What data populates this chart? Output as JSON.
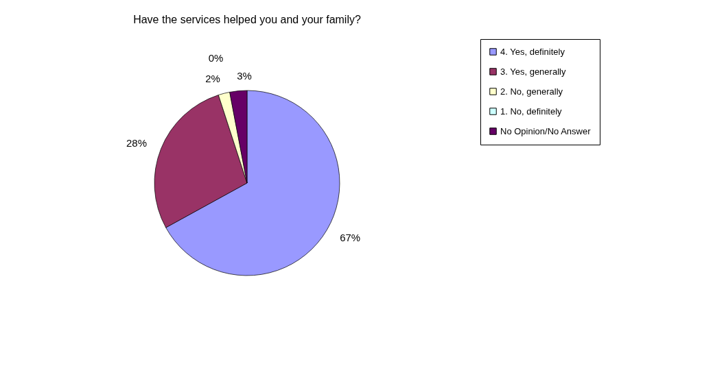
{
  "chart_data": {
    "type": "pie",
    "title": "Have the services helped you and your family?",
    "categories": [
      "4. Yes, definitely",
      "3. Yes, generally",
      "2. No, generally",
      "1. No, definitely",
      "No Opinion/No Answer"
    ],
    "values": [
      67,
      28,
      2,
      0,
      3
    ],
    "colors": [
      "#9999ff",
      "#993366",
      "#ffffcc",
      "#ccffff",
      "#660066"
    ],
    "value_labels": [
      "67%",
      "28%",
      "2%",
      "0%",
      "3%"
    ],
    "legend": "right"
  }
}
